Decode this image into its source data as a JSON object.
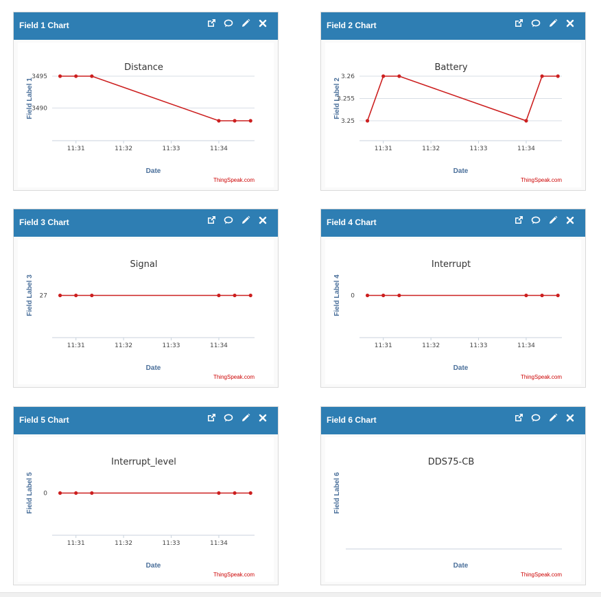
{
  "widgets": [
    {
      "header_title": "Field 1 Chart",
      "chart_data": {
        "type": "line",
        "title": "Distance",
        "ylabel": "Field Label 1",
        "xlabel": "Date",
        "credit": "ThingSpeak.com",
        "x": [
          "11:30:40",
          "11:31:00",
          "11:31:20",
          "11:34:00",
          "11:34:20",
          "11:34:40"
        ],
        "series": [
          {
            "values": [
              3495,
              3495,
              3495,
              3488,
              3488,
              3488
            ]
          }
        ],
        "xticks": [
          "11:31",
          "11:32",
          "11:33",
          "11:34"
        ],
        "yticks": [
          3495,
          3490
        ],
        "ylim": [
          3488,
          3495
        ],
        "line_color": "#cc1f1f",
        "grid": true
      }
    },
    {
      "header_title": "Field 2 Chart",
      "chart_data": {
        "type": "line",
        "title": "Battery",
        "ylabel": "Field Label 2",
        "xlabel": "Date",
        "credit": "ThingSpeak.com",
        "x": [
          "11:30:40",
          "11:31:00",
          "11:31:20",
          "11:34:00",
          "11:34:20",
          "11:34:40"
        ],
        "series": [
          {
            "values": [
              3.25,
              3.26,
              3.26,
              3.25,
              3.26,
              3.26
            ]
          }
        ],
        "xticks": [
          "11:31",
          "11:32",
          "11:33",
          "11:34"
        ],
        "yticks": [
          "3.26",
          "3.255",
          "3.25"
        ],
        "ylim": [
          3.25,
          3.26
        ],
        "line_color": "#cc1f1f",
        "grid": true
      }
    },
    {
      "header_title": "Field 3 Chart",
      "chart_data": {
        "type": "line",
        "title": "Signal",
        "ylabel": "Field Label 3",
        "xlabel": "Date",
        "credit": "ThingSpeak.com",
        "x": [
          "11:30:40",
          "11:31:00",
          "11:31:20",
          "11:34:00",
          "11:34:20",
          "11:34:40"
        ],
        "series": [
          {
            "values": [
              27,
              27,
              27,
              27,
              27,
              27
            ]
          }
        ],
        "xticks": [
          "11:31",
          "11:32",
          "11:33",
          "11:34"
        ],
        "yticks": [
          27
        ],
        "ylim": [
          26,
          28
        ],
        "line_color": "#cc1f1f",
        "grid": false
      }
    },
    {
      "header_title": "Field 4 Chart",
      "chart_data": {
        "type": "line",
        "title": "Interrupt",
        "ylabel": "Field Label 4",
        "xlabel": "Date",
        "credit": "ThingSpeak.com",
        "x": [
          "11:30:40",
          "11:31:00",
          "11:31:20",
          "11:34:00",
          "11:34:20",
          "11:34:40"
        ],
        "series": [
          {
            "values": [
              0,
              0,
              0,
              0,
              0,
              0
            ]
          }
        ],
        "xticks": [
          "11:31",
          "11:32",
          "11:33",
          "11:34"
        ],
        "yticks": [
          0
        ],
        "ylim": [
          -1,
          1
        ],
        "line_color": "#cc1f1f",
        "grid": false
      }
    },
    {
      "header_title": "Field 5 Chart",
      "chart_data": {
        "type": "line",
        "title": "Interrupt_level",
        "ylabel": "Field Label 5",
        "xlabel": "Date",
        "credit": "ThingSpeak.com",
        "x": [
          "11:30:40",
          "11:31:00",
          "11:31:20",
          "11:34:00",
          "11:34:20",
          "11:34:40"
        ],
        "series": [
          {
            "values": [
              0,
              0,
              0,
              0,
              0,
              0
            ]
          }
        ],
        "xticks": [
          "11:31",
          "11:32",
          "11:33",
          "11:34"
        ],
        "yticks": [
          0
        ],
        "ylim": [
          -1,
          1
        ],
        "line_color": "#cc1f1f",
        "grid": false
      }
    },
    {
      "header_title": "Field 6 Chart",
      "chart_data": {
        "type": "line",
        "title": "DDS75-CB",
        "ylabel": "Field Label 6",
        "xlabel": "Date",
        "credit": "ThingSpeak.com",
        "x": [],
        "series": [
          {
            "values": []
          }
        ],
        "xticks": [],
        "yticks": [],
        "line_color": "#cc1f1f",
        "grid": false
      }
    }
  ],
  "icons": [
    "external-link-icon",
    "comment-icon",
    "pencil-icon",
    "close-icon"
  ],
  "colors": {
    "header": "#2e7eb3",
    "line": "#cc1f1f",
    "axis_label": "#4a6f9a",
    "credit": "#cc0000"
  }
}
